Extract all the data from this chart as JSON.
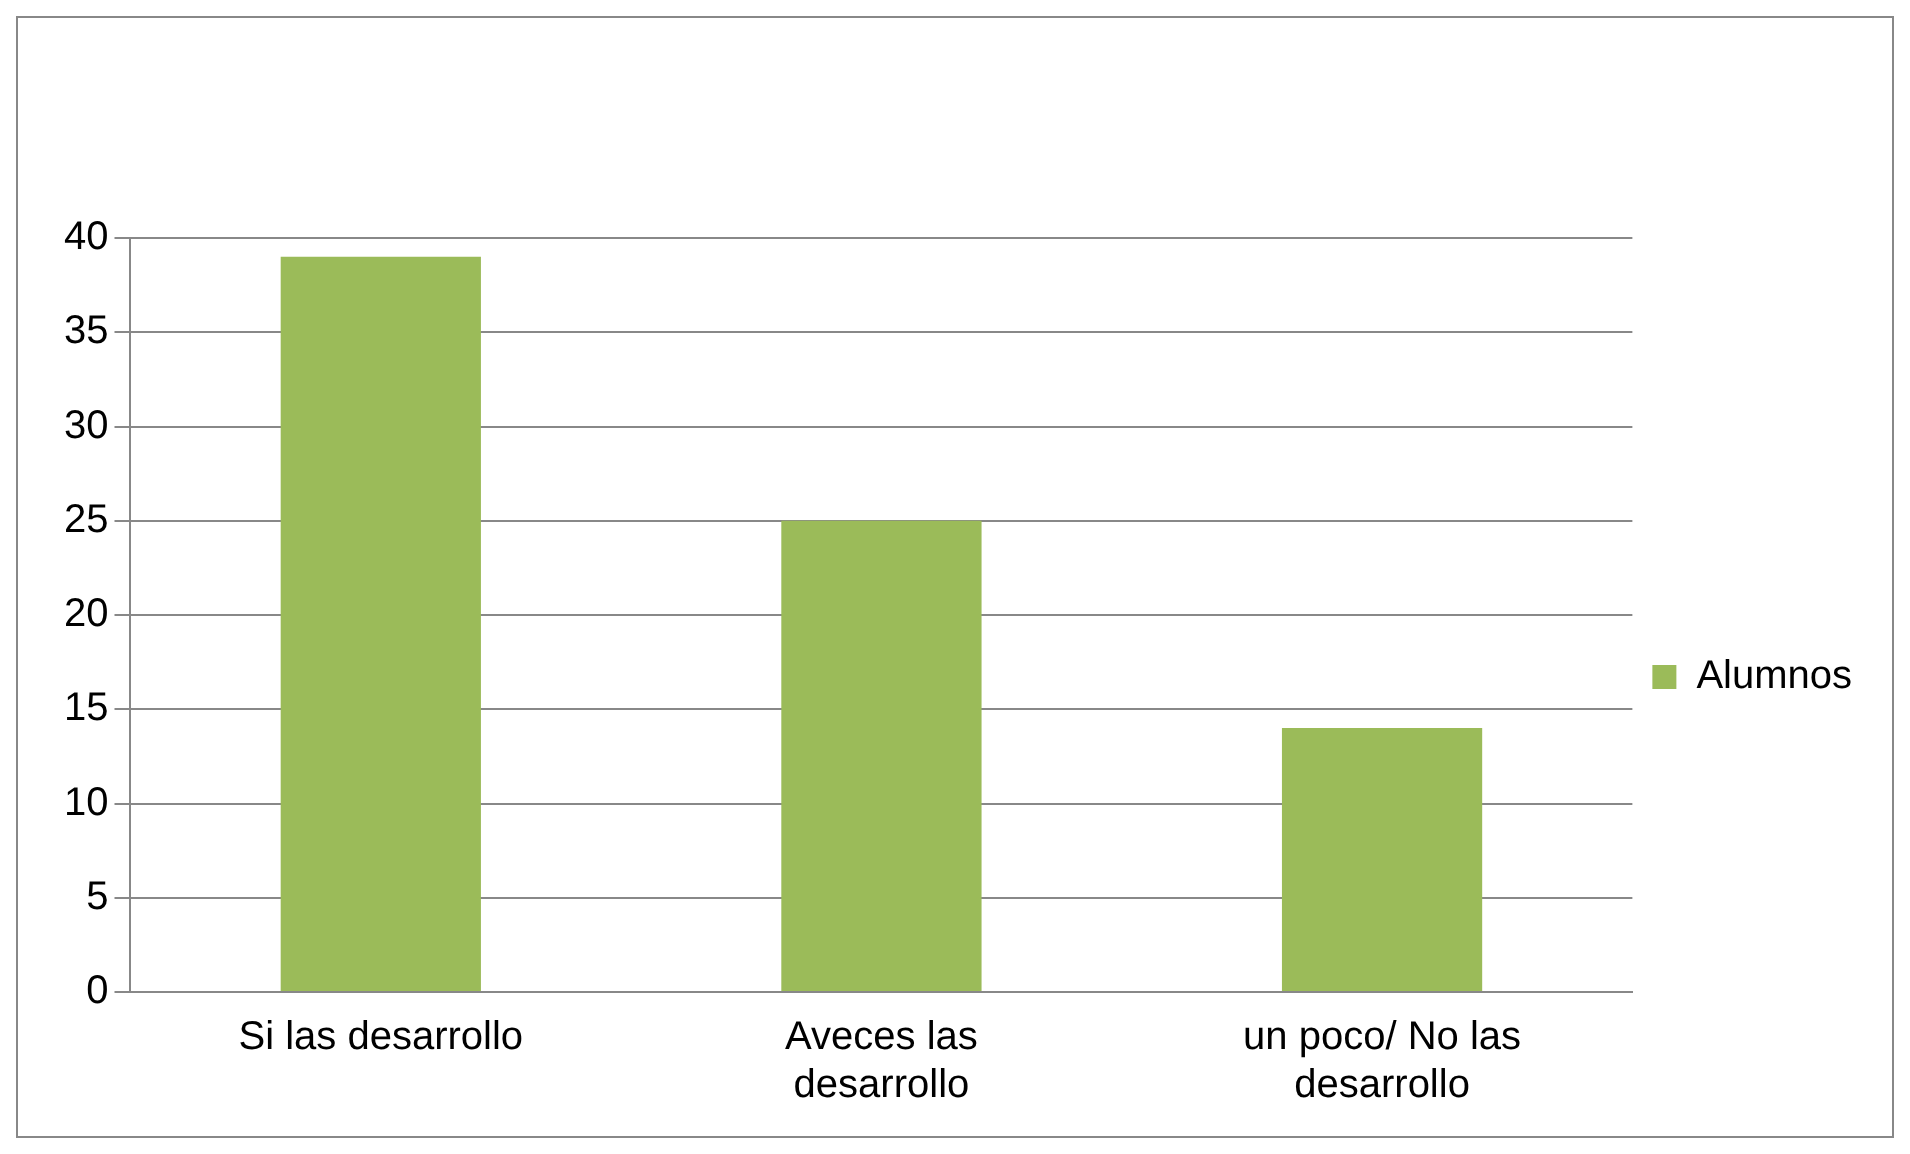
{
  "chart_data": {
    "type": "bar",
    "categories": [
      "Si las desarrollo",
      "Aveces las desarrollo",
      "un poco/ No las desarrollo"
    ],
    "series": [
      {
        "name": "Alumnos",
        "color": "#9bbb59",
        "values": [
          39,
          25,
          14
        ]
      }
    ],
    "ylim": [
      0,
      40
    ],
    "yticks": [
      0,
      5,
      10,
      15,
      20,
      25,
      30,
      35,
      40
    ],
    "grid": "y",
    "legend": "right"
  }
}
